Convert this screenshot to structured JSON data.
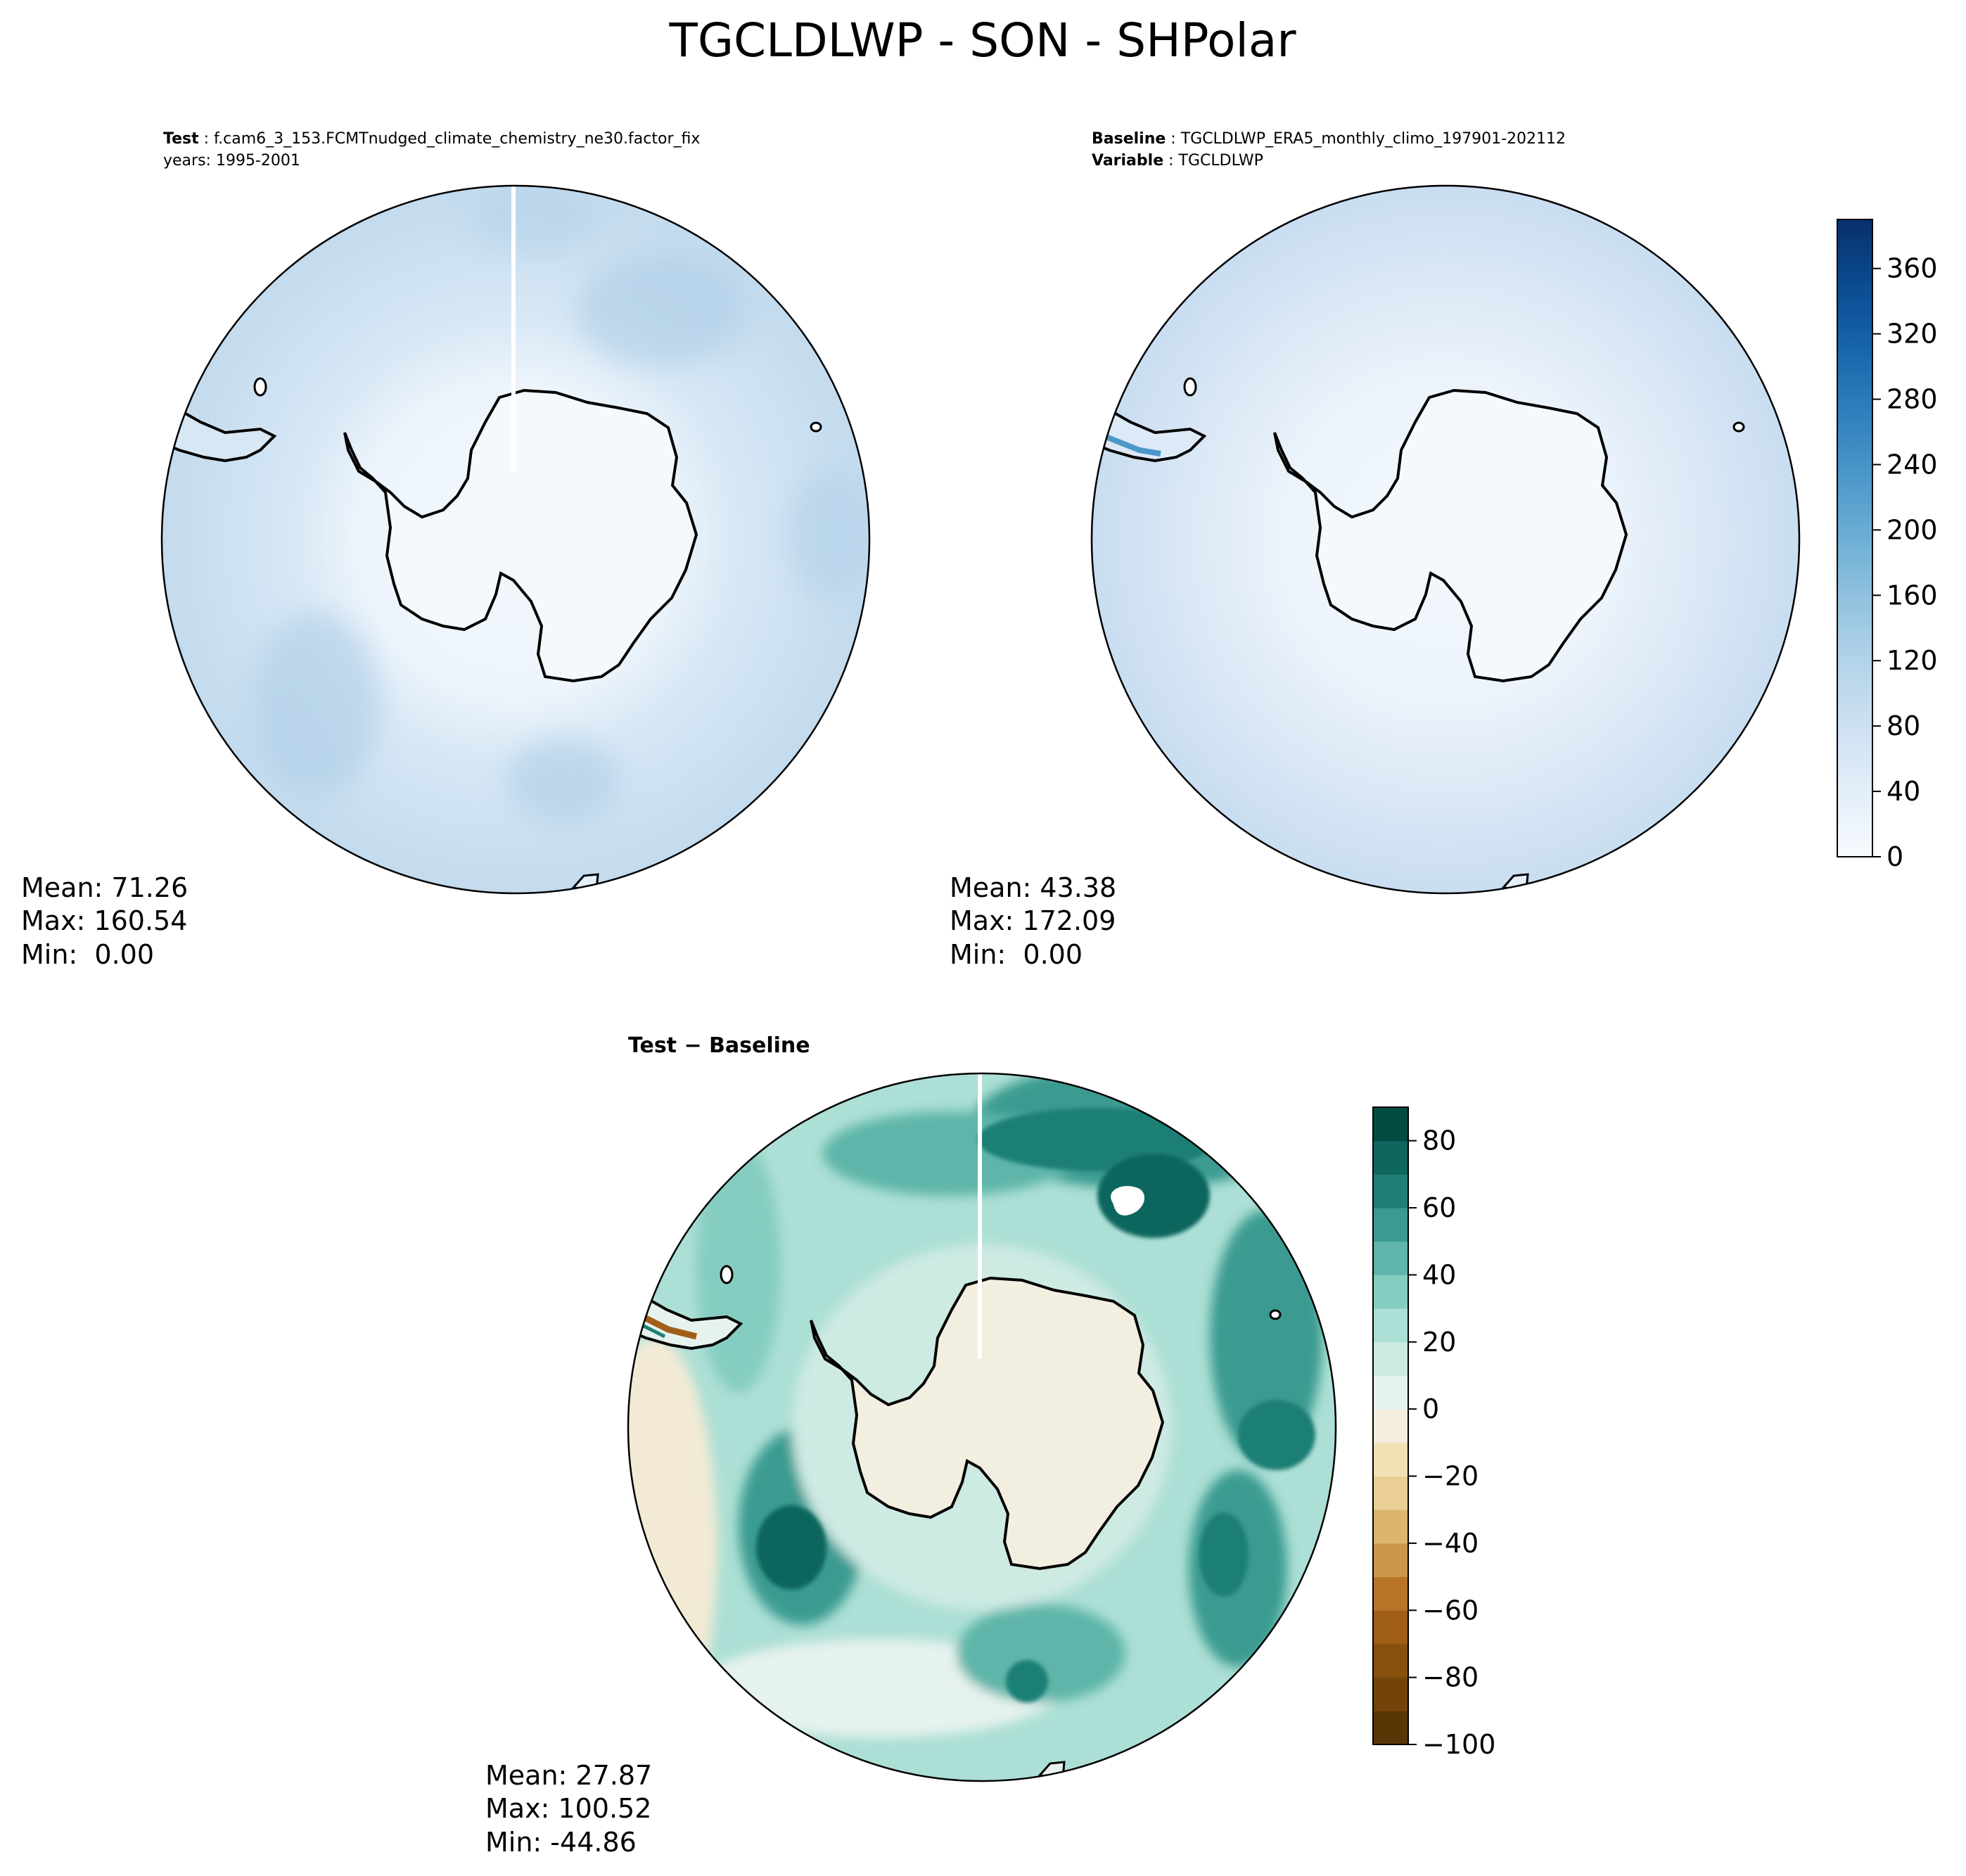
{
  "figure": {
    "title": "TGCLDLWP - SON - SHPolar"
  },
  "chart_data": [
    {
      "type": "heatmap",
      "panel": "test",
      "projection": "south-polar-stereographic",
      "header": {
        "line1_label": "Test",
        "line1_text": "f.cam6_3_153.FCMTnudged_climate_chemistry_ne30.factor_fix",
        "line2_text": "years: 1995-2001"
      },
      "stats": {
        "mean": "Mean: 71.26",
        "max": "Max: 160.54",
        "min": "Min:  0.00"
      },
      "colormap": "Blues",
      "value_range": [
        0,
        380
      ]
    },
    {
      "type": "heatmap",
      "panel": "baseline",
      "projection": "south-polar-stereographic",
      "header": {
        "line1_label": "Baseline",
        "line1_text": "TGCLDLWP_ERA5_monthly_climo_197901-202112",
        "line2_label": "Variable",
        "line2_text": "TGCLDLWP"
      },
      "stats": {
        "mean": "Mean: 43.38",
        "max": "Max: 172.09",
        "min": "Min:  0.00"
      },
      "colormap": "Blues",
      "value_range": [
        0,
        380
      ],
      "colorbar": {
        "min": 0,
        "max": 390,
        "ticks": [
          0,
          40,
          80,
          120,
          160,
          200,
          240,
          280,
          320,
          360
        ],
        "tick_labels": [
          "0",
          "40",
          "80",
          "120",
          "160",
          "200",
          "240",
          "280",
          "320",
          "360"
        ],
        "colors": [
          "#f7fbff",
          "#e3eef9",
          "#cfe1f2",
          "#b5d4e9",
          "#93c3df",
          "#6daed5",
          "#4b97c9",
          "#2f7ebc",
          "#1864aa",
          "#0a4a90",
          "#08306b"
        ]
      }
    },
    {
      "type": "heatmap",
      "panel": "difference",
      "projection": "south-polar-stereographic",
      "header": {
        "title": "Test − Baseline"
      },
      "stats": {
        "mean": "Mean: 27.87",
        "max": "Max: 100.52",
        "min": "Min: -44.86"
      },
      "colormap": "BrBG",
      "colorbar": {
        "min": -100,
        "max": 90,
        "ticks": [
          -100,
          -80,
          -60,
          -40,
          -20,
          0,
          20,
          40,
          60,
          80
        ],
        "tick_labels": [
          "−100",
          "−80",
          "−60",
          "−40",
          "−20",
          "0",
          "20",
          "40",
          "60",
          "80"
        ],
        "bands": [
          {
            "from": -100,
            "to": -90,
            "color": "#5a3606"
          },
          {
            "from": -90,
            "to": -80,
            "color": "#724409"
          },
          {
            "from": -80,
            "to": -70,
            "color": "#87500c"
          },
          {
            "from": -70,
            "to": -60,
            "color": "#a15e17"
          },
          {
            "from": -60,
            "to": -50,
            "color": "#b8752a"
          },
          {
            "from": -50,
            "to": -40,
            "color": "#cc9748"
          },
          {
            "from": -40,
            "to": -30,
            "color": "#dcb56e"
          },
          {
            "from": -30,
            "to": -20,
            "color": "#e9cf93"
          },
          {
            "from": -20,
            "to": -10,
            "color": "#f2e1b5"
          },
          {
            "from": -10,
            "to": 0,
            "color": "#f5eedd"
          },
          {
            "from": 0,
            "to": 10,
            "color": "#e6f2ee"
          },
          {
            "from": 10,
            "to": 20,
            "color": "#cdeae3"
          },
          {
            "from": 20,
            "to": 30,
            "color": "#acdfd5"
          },
          {
            "from": 30,
            "to": 40,
            "color": "#86cdc1"
          },
          {
            "from": 40,
            "to": 50,
            "color": "#5fb5a9"
          },
          {
            "from": 50,
            "to": 60,
            "color": "#3a9b90"
          },
          {
            "from": 60,
            "to": 70,
            "color": "#1f7f76"
          },
          {
            "from": 70,
            "to": 80,
            "color": "#0e665d"
          },
          {
            "from": 80,
            "to": 90,
            "color": "#014b41"
          }
        ]
      }
    }
  ]
}
